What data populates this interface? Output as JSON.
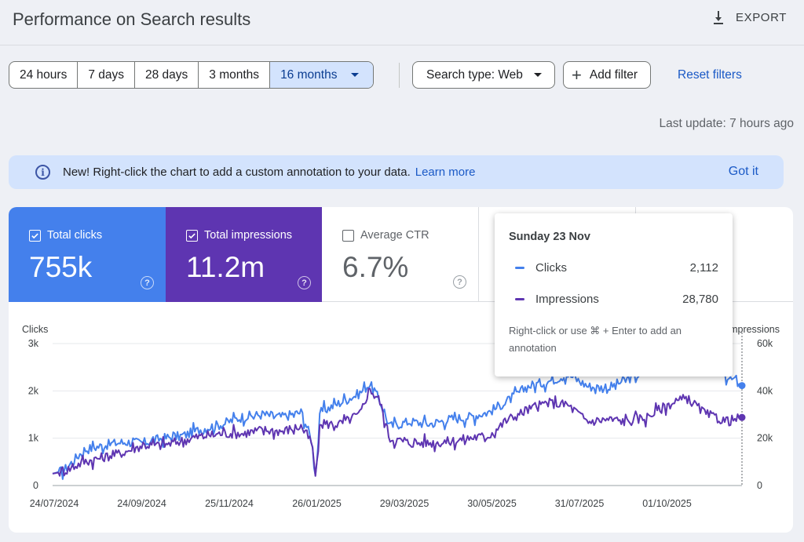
{
  "header": {
    "title": "Performance on Search results",
    "export_label": "EXPORT"
  },
  "toolbar": {
    "date_ranges": [
      "24 hours",
      "7 days",
      "28 days",
      "3 months",
      "16 months"
    ],
    "selected_range": "16 months",
    "search_type_label": "Search type: Web",
    "add_filter_label": "Add filter",
    "reset_filters_label": "Reset filters"
  },
  "last_update": "Last update: 7 hours ago",
  "banner": {
    "text": "New! Right-click the chart to add a custom annotation to your data.",
    "link": "Learn more",
    "dismiss": "Got it"
  },
  "metrics": {
    "clicks": {
      "label": "Total clicks",
      "value": "755k",
      "checked": true
    },
    "impressions": {
      "label": "Total impressions",
      "value": "11.2m",
      "checked": true
    },
    "ctr": {
      "label": "Average CTR",
      "value": "6.7%",
      "checked": false
    },
    "position": {
      "label": "",
      "value": "",
      "checked": false
    }
  },
  "tooltip": {
    "date": "Sunday 23 Nov",
    "rows": [
      {
        "name": "Clicks",
        "value": "2,112"
      },
      {
        "name": "Impressions",
        "value": "28,780"
      }
    ],
    "note": "Right-click or use ⌘ + Enter to add an annotation"
  },
  "colors": {
    "clicks": "#4480ec",
    "impressions": "#5e35b1",
    "accent": "#1a59c6",
    "selected_bg": "#d3e3fd"
  },
  "chart_data": {
    "type": "line",
    "ylabel_left": "Clicks",
    "ylabel_right": "Impressions",
    "y_left_ticks": [
      "0",
      "1k",
      "2k",
      "3k"
    ],
    "y_right_ticks": [
      "0",
      "20k",
      "40k",
      "60k"
    ],
    "ylim_left": [
      0,
      3000
    ],
    "ylim_right": [
      0,
      60000
    ],
    "x_ticks": [
      "24/07/2024",
      "24/09/2024",
      "25/11/2024",
      "26/01/2025",
      "29/03/2025",
      "30/05/2025",
      "31/07/2025",
      "01/10/2025"
    ],
    "x_range": [
      "2024-07-24",
      "2025-11-23"
    ],
    "grid": true,
    "series": [
      {
        "name": "Clicks",
        "axis": "left",
        "points": [
          [
            "2024-07-24",
            250
          ],
          [
            "2024-08-01",
            320
          ],
          [
            "2024-08-15",
            750
          ],
          [
            "2024-08-29",
            850
          ],
          [
            "2024-09-12",
            920
          ],
          [
            "2024-09-26",
            900
          ],
          [
            "2024-10-10",
            1000
          ],
          [
            "2024-10-24",
            1050
          ],
          [
            "2024-11-07",
            1200
          ],
          [
            "2024-11-21",
            1300
          ],
          [
            "2024-12-05",
            1450
          ],
          [
            "2024-12-19",
            1500
          ],
          [
            "2025-01-02",
            1450
          ],
          [
            "2025-01-16",
            1550
          ],
          [
            "2025-01-23",
            950
          ],
          [
            "2025-01-26",
            200
          ],
          [
            "2025-01-29",
            1550
          ],
          [
            "2025-02-12",
            1750
          ],
          [
            "2025-02-26",
            1950
          ],
          [
            "2025-03-05",
            2150
          ],
          [
            "2025-03-12",
            1800
          ],
          [
            "2025-03-19",
            1250
          ],
          [
            "2025-04-02",
            1350
          ],
          [
            "2025-04-16",
            1300
          ],
          [
            "2025-04-30",
            1400
          ],
          [
            "2025-05-14",
            1450
          ],
          [
            "2025-05-28",
            1550
          ],
          [
            "2025-06-11",
            1800
          ],
          [
            "2025-06-25",
            2100
          ],
          [
            "2025-07-09",
            2200
          ],
          [
            "2025-07-23",
            2350
          ],
          [
            "2025-08-06",
            2100
          ],
          [
            "2025-08-20",
            2050
          ],
          [
            "2025-09-03",
            2250
          ],
          [
            "2025-09-17",
            2400
          ],
          [
            "2025-10-01",
            2600
          ],
          [
            "2025-10-15",
            2700
          ],
          [
            "2025-10-29",
            2600
          ],
          [
            "2025-11-12",
            2300
          ],
          [
            "2025-11-23",
            2112
          ]
        ]
      },
      {
        "name": "Impressions",
        "axis": "right",
        "points": [
          [
            "2024-07-24",
            5000
          ],
          [
            "2024-08-01",
            6000
          ],
          [
            "2024-08-15",
            10000
          ],
          [
            "2024-08-29",
            12000
          ],
          [
            "2024-09-12",
            14000
          ],
          [
            "2024-09-26",
            17000
          ],
          [
            "2024-10-10",
            17000
          ],
          [
            "2024-10-24",
            19000
          ],
          [
            "2024-11-07",
            21000
          ],
          [
            "2024-11-21",
            22000
          ],
          [
            "2024-12-05",
            22000
          ],
          [
            "2024-12-19",
            23500
          ],
          [
            "2025-01-02",
            23000
          ],
          [
            "2025-01-16",
            25000
          ],
          [
            "2025-01-23",
            18000
          ],
          [
            "2025-01-26",
            3000
          ],
          [
            "2025-01-29",
            26000
          ],
          [
            "2025-02-12",
            26000
          ],
          [
            "2025-02-26",
            30000
          ],
          [
            "2025-03-05",
            41000
          ],
          [
            "2025-03-12",
            36000
          ],
          [
            "2025-03-19",
            20000
          ],
          [
            "2025-04-02",
            18000
          ],
          [
            "2025-04-16",
            18000
          ],
          [
            "2025-04-30",
            18500
          ],
          [
            "2025-05-14",
            20000
          ],
          [
            "2025-05-28",
            21000
          ],
          [
            "2025-06-11",
            28000
          ],
          [
            "2025-06-25",
            32000
          ],
          [
            "2025-07-09",
            35000
          ],
          [
            "2025-07-23",
            34000
          ],
          [
            "2025-08-06",
            27000
          ],
          [
            "2025-08-20",
            28000
          ],
          [
            "2025-09-03",
            27000
          ],
          [
            "2025-09-17",
            29000
          ],
          [
            "2025-10-01",
            34000
          ],
          [
            "2025-10-15",
            37000
          ],
          [
            "2025-10-29",
            30000
          ],
          [
            "2025-11-12",
            27000
          ],
          [
            "2025-11-23",
            28780
          ]
        ]
      }
    ],
    "hover_date": "2025-11-23"
  }
}
